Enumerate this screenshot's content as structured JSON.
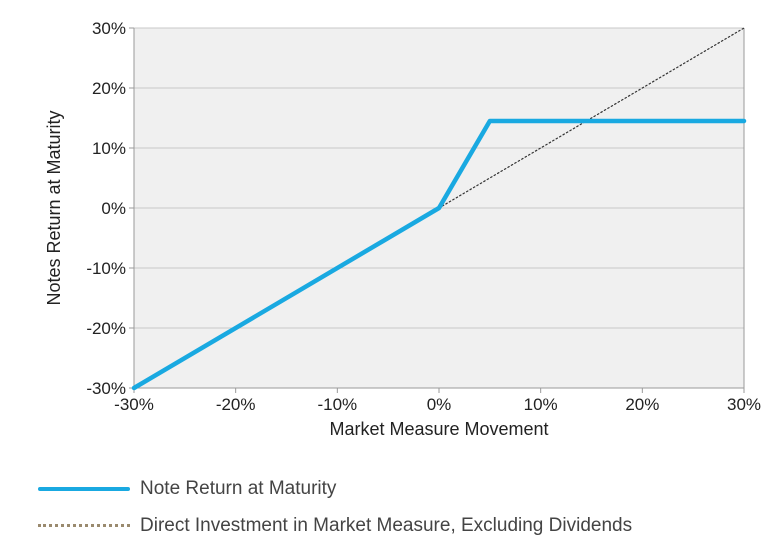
{
  "chart_data": {
    "type": "line",
    "xlabel": "Market Measure Movement",
    "ylabel": "Notes Return at Maturity",
    "xlim": [
      -0.3,
      0.3
    ],
    "ylim": [
      -0.3,
      0.3
    ],
    "x_ticks": [
      -0.3,
      -0.2,
      -0.1,
      0.0,
      0.1,
      0.2,
      0.3
    ],
    "y_ticks": [
      -0.3,
      -0.2,
      -0.1,
      0.0,
      0.1,
      0.2,
      0.3
    ],
    "x_tick_labels": [
      "-30%",
      "-20%",
      "-10%",
      "0%",
      "10%",
      "20%",
      "30%"
    ],
    "y_tick_labels": [
      "-30%",
      "-20%",
      "-10%",
      "0%",
      "10%",
      "20%",
      "30%"
    ],
    "grid": "horizontal",
    "legend_position": "bottom",
    "series": [
      {
        "name": "Note Return at Maturity",
        "style": "solid",
        "color": "#19a9e1",
        "x": [
          -0.3,
          0.0,
          0.05,
          0.3
        ],
        "y": [
          -0.3,
          0.0,
          0.145,
          0.145
        ]
      },
      {
        "name": "Direct Investment in Market Measure, Excluding Dividends",
        "style": "dotted",
        "color": "#333333",
        "x": [
          0.0,
          0.3
        ],
        "y": [
          0.0,
          0.3
        ]
      }
    ]
  },
  "legend": {
    "items": [
      {
        "label": "Note Return at Maturity"
      },
      {
        "label": "Direct Investment in Market Measure, Excluding Dividends"
      }
    ]
  },
  "colors": {
    "plot_background": "#f0f0f0",
    "grid": "#c8c8c8",
    "axis": "#9a9a9a",
    "note_line": "#19a9e1",
    "legend_dots": "#9a8a6e"
  }
}
